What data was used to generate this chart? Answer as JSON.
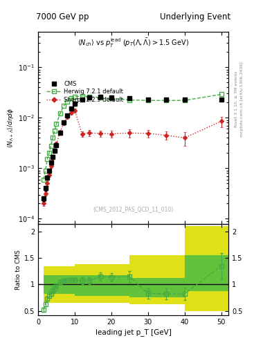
{
  "title_left": "7000 GeV pp",
  "title_right": "Underlying Event",
  "watermark": "(CMS_2012_PAS_QCD_11_010)",
  "right_label_top": "Rivet 3.1.10, ≥ 3M events",
  "right_label_bot": "mcplots.cern.ch [arXiv:1306.3436]",
  "ylabel_ratio": "Ratio to CMS",
  "xlabel": "leading jet p_T [GeV]",
  "ylim_main": [
    8e-05,
    0.5
  ],
  "ylim_ratio": [
    0.42,
    2.15
  ],
  "cms_x": [
    1.5,
    2.0,
    2.5,
    3.0,
    3.5,
    4.0,
    4.5,
    5.0,
    6.0,
    7.0,
    8.0,
    9.0,
    10.0,
    12.0,
    14.0,
    17.0,
    20.0,
    25.0,
    30.0,
    35.0,
    40.0,
    50.0
  ],
  "cms_y": [
    0.00025,
    0.0004,
    0.00065,
    0.0009,
    0.0013,
    0.0017,
    0.0022,
    0.0029,
    0.005,
    0.008,
    0.011,
    0.015,
    0.019,
    0.023,
    0.025,
    0.026,
    0.025,
    0.024,
    0.023,
    0.023,
    0.023,
    0.023
  ],
  "cms_yerr": [
    3e-05,
    4e-05,
    6e-05,
    8e-05,
    0.00012,
    0.00015,
    0.0002,
    0.00025,
    0.0004,
    0.0006,
    0.0008,
    0.001,
    0.0015,
    0.0015,
    0.0018,
    0.0018,
    0.0015,
    0.0015,
    0.0015,
    0.0015,
    0.0015,
    0.0015
  ],
  "herwig_x": [
    1.5,
    2.0,
    2.5,
    3.0,
    3.5,
    4.0,
    4.5,
    5.0,
    6.0,
    7.0,
    8.0,
    9.0,
    10.0,
    12.0,
    14.0,
    17.0,
    20.0,
    25.0,
    30.0,
    35.0,
    40.0,
    50.0
  ],
  "herwig_y": [
    0.0006,
    0.0009,
    0.0015,
    0.002,
    0.0028,
    0.004,
    0.0055,
    0.0075,
    0.012,
    0.017,
    0.021,
    0.024,
    0.026,
    0.027,
    0.026,
    0.025,
    0.024,
    0.0225,
    0.022,
    0.022,
    0.022,
    0.029
  ],
  "sherpa_x": [
    1.5,
    2.0,
    2.5,
    3.0,
    3.5,
    4.0,
    4.5,
    5.0,
    6.0,
    7.0,
    8.0,
    9.0,
    10.0,
    12.0,
    14.0,
    17.0,
    20.0,
    25.0,
    30.0,
    35.0,
    40.0,
    50.0
  ],
  "sherpa_y": [
    0.0002,
    0.00032,
    0.0005,
    0.00075,
    0.0011,
    0.0016,
    0.0022,
    0.003,
    0.0052,
    0.0078,
    0.0105,
    0.0125,
    0.014,
    0.0048,
    0.005,
    0.0049,
    0.0048,
    0.005,
    0.0049,
    0.0045,
    0.004,
    0.0085
  ],
  "sherpa_yerr": [
    2e-05,
    3e-05,
    5e-05,
    7e-05,
    0.0001,
    0.00015,
    0.0002,
    0.0003,
    0.0005,
    0.0007,
    0.0009,
    0.0011,
    0.0013,
    0.0006,
    0.0007,
    0.0007,
    0.0007,
    0.0009,
    0.0009,
    0.0008,
    0.0012,
    0.002
  ],
  "ratio_herwig_x": [
    1.5,
    2.0,
    2.5,
    3.0,
    3.5,
    4.0,
    4.5,
    5.0,
    6.0,
    7.0,
    8.0,
    9.0,
    10.0,
    12.0,
    14.0,
    17.0,
    20.0,
    25.0,
    30.0,
    35.0,
    40.0,
    50.0
  ],
  "ratio_herwig_y": [
    0.52,
    0.62,
    0.73,
    0.78,
    0.82,
    0.88,
    0.92,
    0.98,
    1.04,
    1.07,
    1.08,
    1.08,
    1.08,
    1.07,
    1.07,
    1.15,
    1.14,
    1.15,
    0.83,
    0.82,
    0.82,
    1.35
  ],
  "ratio_herwig_yerr": [
    0.04,
    0.04,
    0.04,
    0.04,
    0.04,
    0.04,
    0.04,
    0.04,
    0.04,
    0.04,
    0.04,
    0.04,
    0.04,
    0.06,
    0.06,
    0.08,
    0.08,
    0.1,
    0.1,
    0.1,
    0.12,
    0.25
  ],
  "band_x_edges": [
    1.5,
    10.0,
    25.0,
    40.0,
    52.0
  ],
  "band_yellow_lo": [
    0.65,
    0.65,
    0.62,
    0.5
  ],
  "band_yellow_hi": [
    1.35,
    1.38,
    1.55,
    2.1
  ],
  "band_green_lo": [
    0.82,
    0.78,
    0.75,
    0.88
  ],
  "band_green_hi": [
    1.18,
    1.18,
    1.12,
    1.55
  ],
  "cms_color": "#000000",
  "herwig_color": "#44aa44",
  "sherpa_color": "#cc2222",
  "yellow_color": "#dddd00",
  "green_color": "#44bb44",
  "xlim": [
    0,
    52
  ]
}
